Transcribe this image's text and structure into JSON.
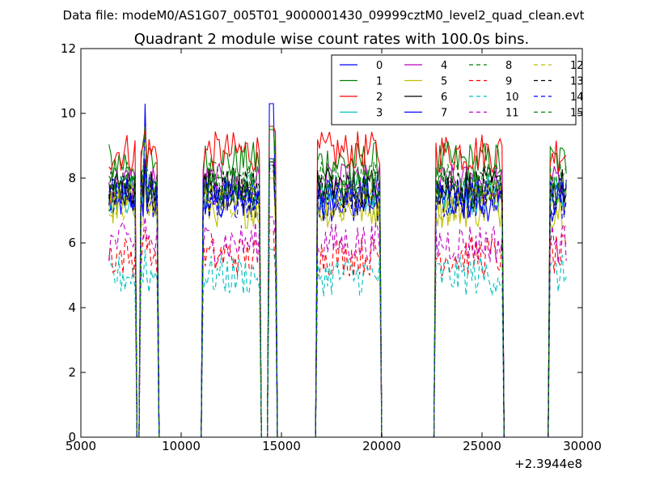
{
  "header": {
    "data_file": "Data file: modeM0/AS1G07_005T01_9000001430_09999cztM0_level2_quad_clean.evt"
  },
  "chart_data": {
    "type": "line",
    "title": "Quadrant 2 module wise count rates with 100.0s bins.",
    "xlabel": "",
    "ylabel": "",
    "x_offset_label": "+2.3944e8",
    "xlim": [
      5000,
      30000
    ],
    "ylim": [
      0,
      12
    ],
    "x_ticks": [
      5000,
      10000,
      15000,
      20000,
      25000,
      30000
    ],
    "y_ticks": [
      0,
      2,
      4,
      6,
      8,
      10,
      12
    ],
    "grid": false,
    "legend_position": "top-right",
    "legend_columns": 4,
    "bin_size_s": 100,
    "segments": [
      {
        "start": 6400,
        "end": 7700
      },
      {
        "start": 8000,
        "end": 8800
      },
      {
        "start": 11100,
        "end": 13900
      },
      {
        "start": 14400,
        "end": 14700
      },
      {
        "start": 16800,
        "end": 19900
      },
      {
        "start": 22700,
        "end": 26000
      },
      {
        "start": 28400,
        "end": 29200
      }
    ],
    "series": [
      {
        "name": "0",
        "color": "#0000ff",
        "dash": "solid",
        "level": 7.3,
        "peak": 10.3
      },
      {
        "name": "1",
        "color": "#008000",
        "dash": "solid",
        "level": 8.5,
        "peak": 9.5
      },
      {
        "name": "2",
        "color": "#ff0000",
        "dash": "solid",
        "level": 8.8,
        "peak": 9.6
      },
      {
        "name": "3",
        "color": "#00bfbf",
        "dash": "solid",
        "level": 7.5,
        "peak": 8.4
      },
      {
        "name": "4",
        "color": "#bf00bf",
        "dash": "solid",
        "level": 7.8,
        "peak": 8.6
      },
      {
        "name": "5",
        "color": "#bfbf00",
        "dash": "solid",
        "level": 7.1,
        "peak": 8.0
      },
      {
        "name": "6",
        "color": "#000000",
        "dash": "solid",
        "level": 7.7,
        "peak": 8.5
      },
      {
        "name": "7",
        "color": "#0000ff",
        "dash": "solid",
        "level": 7.4,
        "peak": 8.6
      },
      {
        "name": "8",
        "color": "#008000",
        "dash": "dashed",
        "level": 7.9,
        "peak": 8.6
      },
      {
        "name": "9",
        "color": "#ff0000",
        "dash": "dashed",
        "level": 5.6,
        "peak": 6.4
      },
      {
        "name": "10",
        "color": "#00bfbf",
        "dash": "dashed",
        "level": 5.0,
        "peak": 5.8
      },
      {
        "name": "11",
        "color": "#bf00bf",
        "dash": "dashed",
        "level": 6.0,
        "peak": 6.8
      },
      {
        "name": "12",
        "color": "#bfbf00",
        "dash": "dashed",
        "level": 7.3,
        "peak": 8.2
      },
      {
        "name": "13",
        "color": "#000000",
        "dash": "dashed",
        "level": 7.6,
        "peak": 8.4
      },
      {
        "name": "14",
        "color": "#0000ff",
        "dash": "dashed",
        "level": 7.4,
        "peak": 8.3
      },
      {
        "name": "15",
        "color": "#008000",
        "dash": "dashed",
        "level": 7.8,
        "peak": 9.6
      }
    ]
  }
}
